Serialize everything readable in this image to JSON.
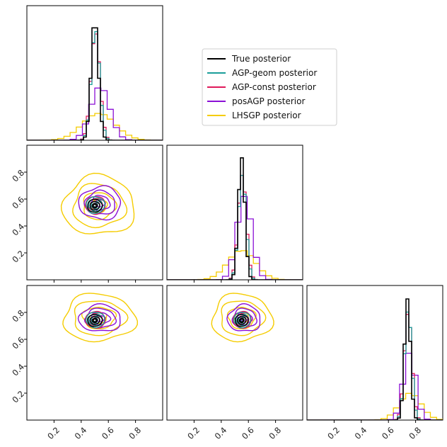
{
  "chart_data": {
    "type": "corner",
    "parameters": 3,
    "axis_range": [
      0,
      1
    ],
    "x_tick_labels": [
      "0.2",
      "0.4",
      "0.6",
      "0.8"
    ],
    "y_tick_labels": [
      "0.2",
      "0.4",
      "0.6",
      "0.8"
    ],
    "x_tick_values": [
      0.2,
      0.4,
      0.6,
      0.8
    ],
    "y_tick_values": [
      0.2,
      0.4,
      0.6,
      0.8
    ],
    "legend_position": "top-right",
    "series": [
      {
        "name": "True posterior",
        "color": "#000000",
        "marginals": [
          {
            "mean": 0.5,
            "sd": 0.027,
            "peak": 0.9
          },
          {
            "mean": 0.55,
            "sd": 0.024,
            "peak": 0.91
          },
          {
            "mean": 0.74,
            "sd": 0.022,
            "peak": 0.9
          }
        ]
      },
      {
        "name": "AGP-geom posterior",
        "color": "#1a9e9a",
        "marginals": [
          {
            "mean": 0.505,
            "sd": 0.031,
            "peak": 0.82
          },
          {
            "mean": 0.555,
            "sd": 0.028,
            "peak": 0.78
          },
          {
            "mean": 0.745,
            "sd": 0.026,
            "peak": 0.82
          }
        ]
      },
      {
        "name": "AGP-const posterior",
        "color": "#e0195a",
        "marginals": [
          {
            "mean": 0.505,
            "sd": 0.033,
            "peak": 0.8
          },
          {
            "mean": 0.555,
            "sd": 0.03,
            "peak": 0.78
          },
          {
            "mean": 0.745,
            "sd": 0.028,
            "peak": 0.8
          }
        ]
      },
      {
        "name": "posAGP posterior",
        "color": "#8b10d6",
        "marginals": [
          {
            "mean": 0.54,
            "sd": 0.07,
            "peak": 0.4
          },
          {
            "mean": 0.57,
            "sd": 0.055,
            "peak": 0.62
          },
          {
            "mean": 0.755,
            "sd": 0.045,
            "peak": 0.5
          }
        ]
      },
      {
        "name": "LHSGP posterior",
        "color": "#f5cc00",
        "marginals": [
          {
            "mean": 0.53,
            "sd": 0.12,
            "peak": 0.2
          },
          {
            "mean": 0.55,
            "sd": 0.1,
            "peak": 0.22
          },
          {
            "mean": 0.76,
            "sd": 0.08,
            "peak": 0.2
          }
        ]
      }
    ]
  }
}
